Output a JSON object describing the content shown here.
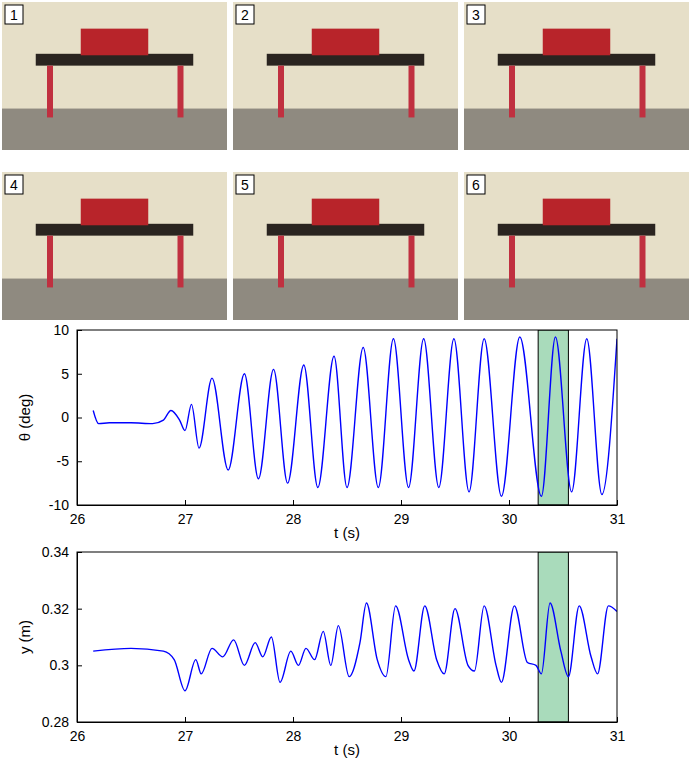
{
  "photos": {
    "labels": [
      "1",
      "2",
      "3",
      "4",
      "5",
      "6"
    ]
  },
  "chart_data": [
    {
      "type": "line",
      "x_label": "t (s)",
      "y_label": "θ (deg)",
      "color": "#0000ff",
      "xlim": [
        26,
        31
      ],
      "xticks": [
        26,
        27,
        28,
        29,
        30,
        31
      ],
      "ylim": [
        -10,
        10
      ],
      "yticks": [
        -10,
        -5,
        0,
        5,
        10
      ],
      "highlight_x": [
        30.27,
        30.55
      ],
      "x": [
        26.15,
        26.2,
        26.3,
        26.5,
        26.7,
        26.8,
        26.87,
        26.95,
        27.0,
        27.06,
        27.13,
        27.25,
        27.4,
        27.55,
        27.68,
        27.82,
        27.95,
        28.1,
        28.23,
        28.38,
        28.5,
        28.65,
        28.79,
        28.93,
        29.07,
        29.21,
        29.35,
        29.49,
        29.63,
        29.77,
        29.93,
        30.1,
        30.3,
        30.43,
        30.58,
        30.72,
        30.86,
        31.0
      ],
      "values": [
        0.8,
        -0.7,
        -0.6,
        -0.6,
        -0.7,
        -0.3,
        0.8,
        -0.3,
        -1.5,
        1.5,
        -3.5,
        4.5,
        -6,
        5,
        -7,
        5.5,
        -7.5,
        6,
        -8,
        7,
        -8,
        8,
        -8,
        9,
        -8,
        9,
        -8,
        9,
        -8.5,
        9,
        -9,
        9.2,
        -9,
        9.2,
        -8.5,
        9,
        -8.8,
        9
      ]
    },
    {
      "type": "line",
      "x_label": "t (s)",
      "y_label": "y (m)",
      "color": "#0000ff",
      "xlim": [
        26,
        31
      ],
      "xticks": [
        26,
        27,
        28,
        29,
        30,
        31
      ],
      "ylim": [
        0.28,
        0.34
      ],
      "yticks": [
        0.28,
        0.3,
        0.32,
        0.34
      ],
      "highlight_x": [
        30.27,
        30.55
      ],
      "x": [
        26.15,
        26.5,
        26.8,
        26.9,
        27.0,
        27.1,
        27.15,
        27.25,
        27.35,
        27.45,
        27.55,
        27.65,
        27.72,
        27.8,
        27.88,
        27.98,
        28.05,
        28.12,
        28.2,
        28.28,
        28.35,
        28.42,
        28.52,
        28.62,
        28.68,
        28.78,
        28.86,
        28.95,
        29.07,
        29.12,
        29.22,
        29.33,
        29.4,
        29.5,
        29.62,
        29.68,
        29.77,
        29.88,
        29.93,
        30.05,
        30.17,
        30.25,
        30.3,
        30.38,
        30.48,
        30.55,
        30.65,
        30.76,
        30.82,
        30.92,
        31.0
      ],
      "values": [
        0.305,
        0.306,
        0.305,
        0.302,
        0.291,
        0.302,
        0.297,
        0.306,
        0.303,
        0.309,
        0.3,
        0.308,
        0.303,
        0.31,
        0.294,
        0.305,
        0.3,
        0.306,
        0.302,
        0.312,
        0.3,
        0.314,
        0.296,
        0.308,
        0.322,
        0.302,
        0.296,
        0.321,
        0.302,
        0.298,
        0.321,
        0.302,
        0.297,
        0.32,
        0.3,
        0.298,
        0.321,
        0.3,
        0.294,
        0.321,
        0.301,
        0.3,
        0.297,
        0.322,
        0.305,
        0.296,
        0.321,
        0.303,
        0.297,
        0.321,
        0.319
      ]
    }
  ]
}
